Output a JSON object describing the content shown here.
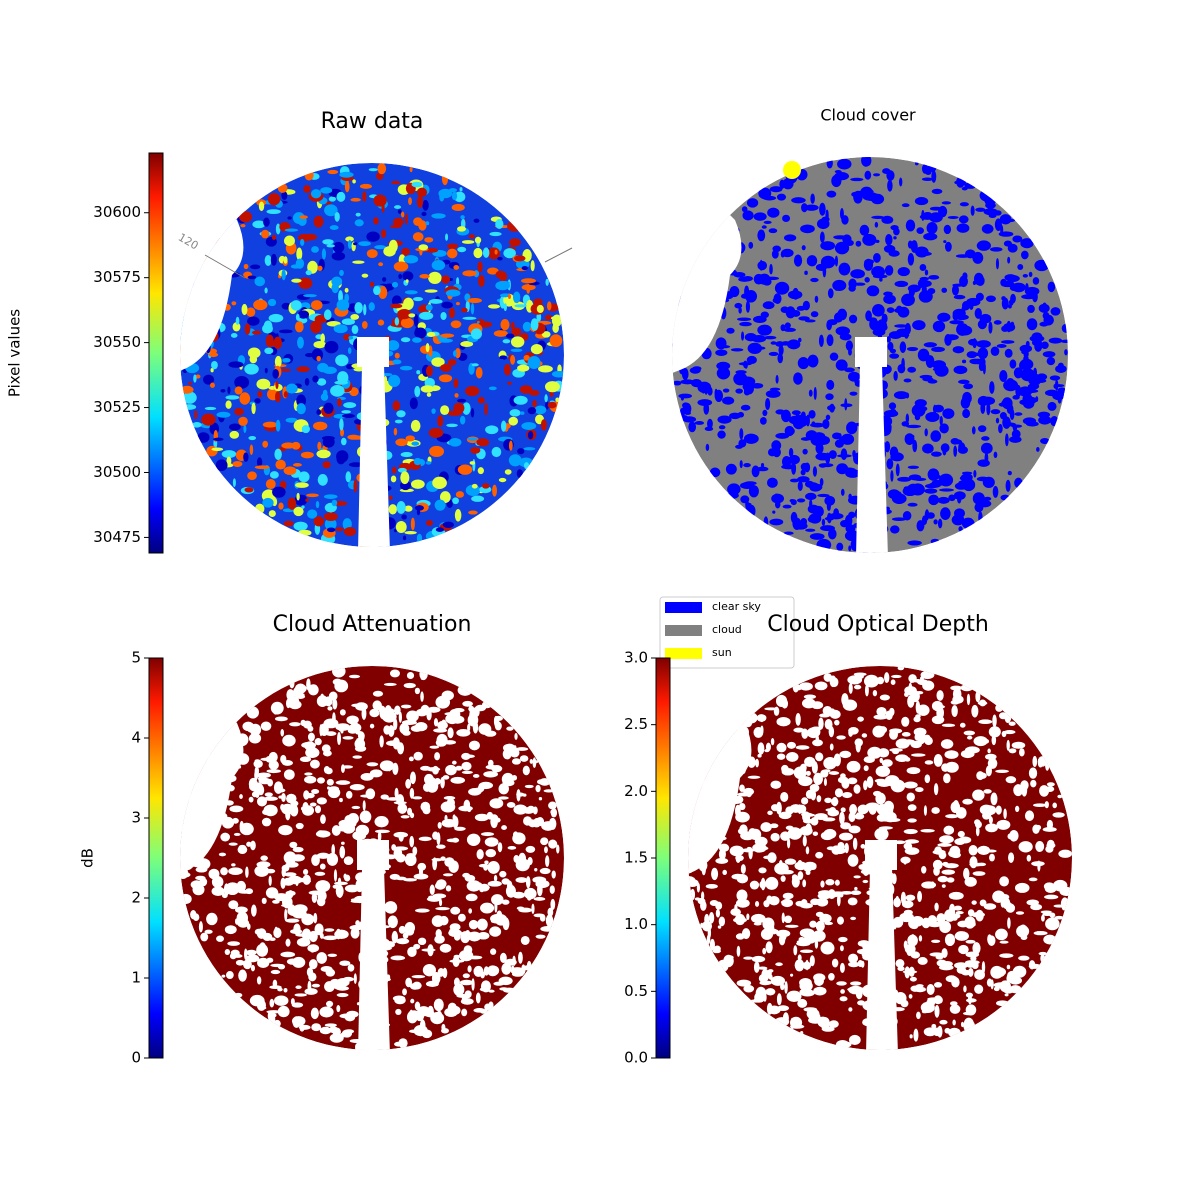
{
  "chart_data": [
    {
      "type": "image",
      "title": "Raw data",
      "colorbar_label": "Pixel values",
      "colormap": "jet",
      "clim": [
        30469,
        30623
      ],
      "cticks": [
        30475,
        30500,
        30525,
        30550,
        30575,
        30600
      ],
      "annotations": [
        "120"
      ]
    },
    {
      "type": "image",
      "title": "Cloud cover",
      "legend": [
        {
          "name": "clear sky",
          "color": "#0000ff"
        },
        {
          "name": "cloud",
          "color": "#808080"
        },
        {
          "name": "sun",
          "color": "#ffff00"
        }
      ]
    },
    {
      "type": "image",
      "title": "Cloud Attenuation",
      "colorbar_label": "dB",
      "colormap": "jet",
      "clim": [
        0,
        5
      ],
      "cticks": [
        0,
        1,
        2,
        3,
        4,
        5
      ]
    },
    {
      "type": "image",
      "title": "Cloud Optical Depth",
      "colormap": "jet",
      "clim": [
        0,
        3
      ],
      "cticks": [
        {
          "value": 0,
          "label": "0.0"
        },
        {
          "value": 0.5,
          "label": "0.5"
        },
        {
          "value": 1,
          "label": "1.0"
        },
        {
          "value": 1.5,
          "label": "1.5"
        },
        {
          "value": 2,
          "label": "2.0"
        },
        {
          "value": 2.5,
          "label": "2.5"
        },
        {
          "value": 3,
          "label": "3.0"
        }
      ]
    }
  ]
}
